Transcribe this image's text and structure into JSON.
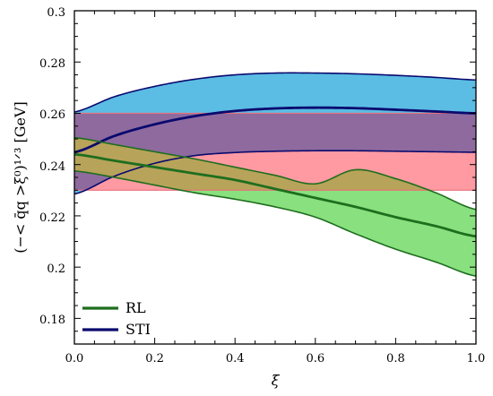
{
  "chart_data": {
    "type": "area",
    "xlabel": "ξ",
    "ylabel": "(−< q̄q >ξ⁰)¹ᐟ³ [GeV]",
    "xlim": [
      0,
      1
    ],
    "ylim": [
      0.17,
      0.3
    ],
    "xticks": [
      "0.0",
      "0.2",
      "0.4",
      "0.6",
      "0.8",
      "1.0"
    ],
    "yticks": [
      "0.18",
      "0.2",
      "0.22",
      "0.24",
      "0.26",
      "0.28",
      "0.3"
    ],
    "legend_position": "bottom-left",
    "horizontal_band": {
      "lower": 0.23,
      "upper": 0.26,
      "fill_color": "#ff9aa2"
    },
    "series": [
      {
        "name": "STI",
        "line_color": "#0a0a6e",
        "fill_color": "#5bbce4",
        "x": [
          0.0,
          0.1,
          0.2,
          0.3,
          0.4,
          0.5,
          0.6,
          0.7,
          0.8,
          0.9,
          1.0
        ],
        "upper": [
          0.2605,
          0.2665,
          0.2705,
          0.2733,
          0.275,
          0.2757,
          0.2757,
          0.2754,
          0.2748,
          0.274,
          0.273
        ],
        "middle": [
          0.2448,
          0.2512,
          0.2557,
          0.2589,
          0.2609,
          0.2619,
          0.2622,
          0.262,
          0.2614,
          0.2607,
          0.26
        ],
        "lower": [
          0.2285,
          0.2355,
          0.2405,
          0.2435,
          0.2447,
          0.2452,
          0.2454,
          0.2454,
          0.2452,
          0.245,
          0.2448
        ],
        "lower_fill_color": "#8e6a9e"
      },
      {
        "name": "RL",
        "line_color": "#1e6e1e",
        "fill_color": "#88e07e",
        "x": [
          0.0,
          0.1,
          0.2,
          0.3,
          0.4,
          0.5,
          0.6,
          0.7,
          0.8,
          0.9,
          1.0
        ],
        "upper": [
          0.2505,
          0.2478,
          0.245,
          0.2422,
          0.239,
          0.2358,
          0.2325,
          0.238,
          0.2345,
          0.229,
          0.2225
        ],
        "middle": [
          0.244,
          0.2415,
          0.239,
          0.2365,
          0.234,
          0.2305,
          0.227,
          0.2235,
          0.2195,
          0.216,
          0.212
        ],
        "lower": [
          0.2375,
          0.235,
          0.232,
          0.229,
          0.2265,
          0.2235,
          0.2195,
          0.213,
          0.207,
          0.202,
          0.1965
        ],
        "overlap_fill_color": "#b8a35a"
      }
    ]
  }
}
